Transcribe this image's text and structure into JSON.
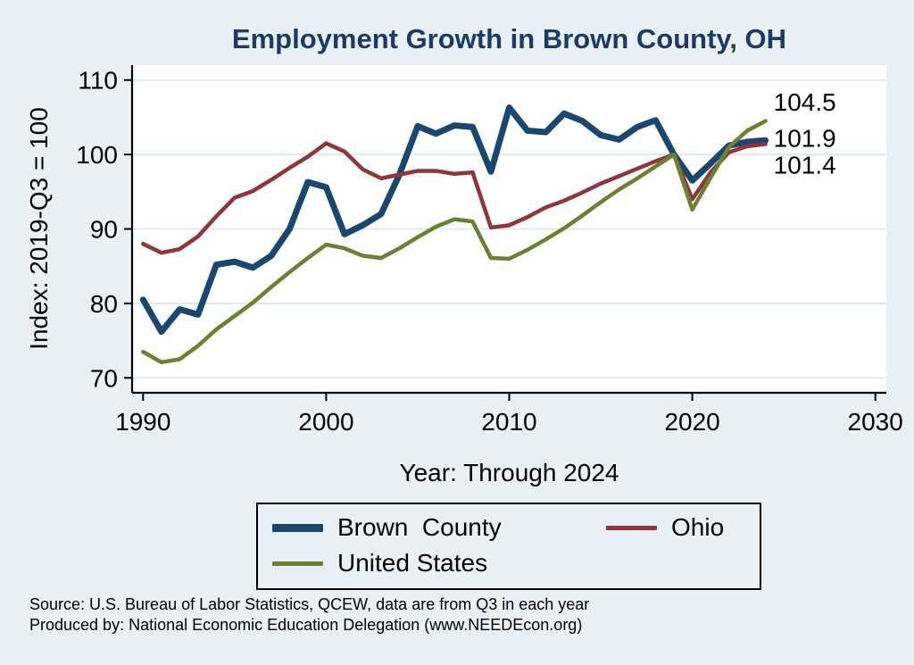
{
  "title": "Employment Growth in Brown County, OH",
  "xlabel": "Year: Through 2024",
  "ylabel": "Index: 2019-Q3 = 100",
  "footer": {
    "line1": "Source: U.S. Bureau of Labor Statistics, QCEW, data are from Q3 in each year",
    "line2": "Produced by: National Economic Education Delegation (www.NEEDEcon.org)"
  },
  "legend": {
    "items": [
      {
        "label": "Brown  County",
        "color": "#1a476f",
        "thickness": 9
      },
      {
        "label": "Ohio",
        "color": "#90353b",
        "thickness": 5
      },
      {
        "label": "United States",
        "color": "#6b8131",
        "thickness": 5
      }
    ]
  },
  "colors": {
    "background": "#e9f1f6",
    "plot_background": "#ffffff",
    "gridline": "#d7e7f2",
    "axis": "#000000",
    "title": "#1b3a68",
    "brown_county": "#1a476f",
    "ohio": "#90353b",
    "united_states": "#6b8131"
  },
  "chart_data": {
    "type": "line",
    "title": "Employment Growth in Brown County, OH",
    "xlabel": "Year: Through 2024",
    "ylabel": "Index: 2019-Q3 = 100",
    "grid": true,
    "legend_position": "bottom",
    "xlim": [
      1989.4,
      2030.6
    ],
    "ylim": [
      68,
      112
    ],
    "x_ticks": [
      1990,
      2000,
      2010,
      2020,
      2030
    ],
    "y_ticks": [
      70,
      80,
      90,
      100,
      110
    ],
    "x": [
      1990,
      1991,
      1992,
      1993,
      1994,
      1995,
      1996,
      1997,
      1998,
      1999,
      2000,
      2001,
      2002,
      2003,
      2004,
      2005,
      2006,
      2007,
      2008,
      2009,
      2010,
      2011,
      2012,
      2013,
      2014,
      2015,
      2016,
      2017,
      2018,
      2019,
      2020,
      2021,
      2022,
      2023,
      2024
    ],
    "series": [
      {
        "id": "brown-county",
        "name": "Brown  County",
        "color": "#1a476f",
        "width": 7,
        "values": [
          80.5,
          76.2,
          79.2,
          78.5,
          85.2,
          85.6,
          84.8,
          86.4,
          90.0,
          96.3,
          95.6,
          89.3,
          90.5,
          92.0,
          97.3,
          103.8,
          102.8,
          103.9,
          103.7,
          97.7,
          106.3,
          103.2,
          103.0,
          105.5,
          104.5,
          102.6,
          102.0,
          103.7,
          104.6,
          100.0,
          96.5,
          98.8,
          101.2,
          101.7,
          101.9
        ]
      },
      {
        "id": "ohio",
        "name": "Ohio",
        "color": "#90353b",
        "width": 4.5,
        "values": [
          88.0,
          86.8,
          87.3,
          89.0,
          91.7,
          94.2,
          95.1,
          96.6,
          98.2,
          99.7,
          101.5,
          100.4,
          98.0,
          96.8,
          97.3,
          97.8,
          97.8,
          97.4,
          97.6,
          90.2,
          90.5,
          91.6,
          92.9,
          93.8,
          94.9,
          96.1,
          97.1,
          98.1,
          99.1,
          100.0,
          94.0,
          97.6,
          100.3,
          101.1,
          101.4
        ]
      },
      {
        "id": "united-states",
        "name": "United States",
        "color": "#6b8131",
        "width": 4.5,
        "values": [
          73.5,
          72.1,
          72.5,
          74.3,
          76.5,
          78.3,
          80.1,
          82.2,
          84.2,
          86.1,
          87.9,
          87.4,
          86.4,
          86.1,
          87.4,
          88.9,
          90.3,
          91.3,
          91.0,
          86.1,
          86.0,
          87.2,
          88.6,
          90.1,
          91.8,
          93.6,
          95.3,
          96.8,
          98.4,
          100.0,
          92.6,
          96.9,
          101.0,
          103.2,
          104.5
        ]
      }
    ],
    "end_labels": [
      {
        "text": "104.5",
        "at": 106.8
      },
      {
        "text": "101.9",
        "at": 101.9
      },
      {
        "text": "101.4",
        "at": 98.3
      }
    ]
  }
}
